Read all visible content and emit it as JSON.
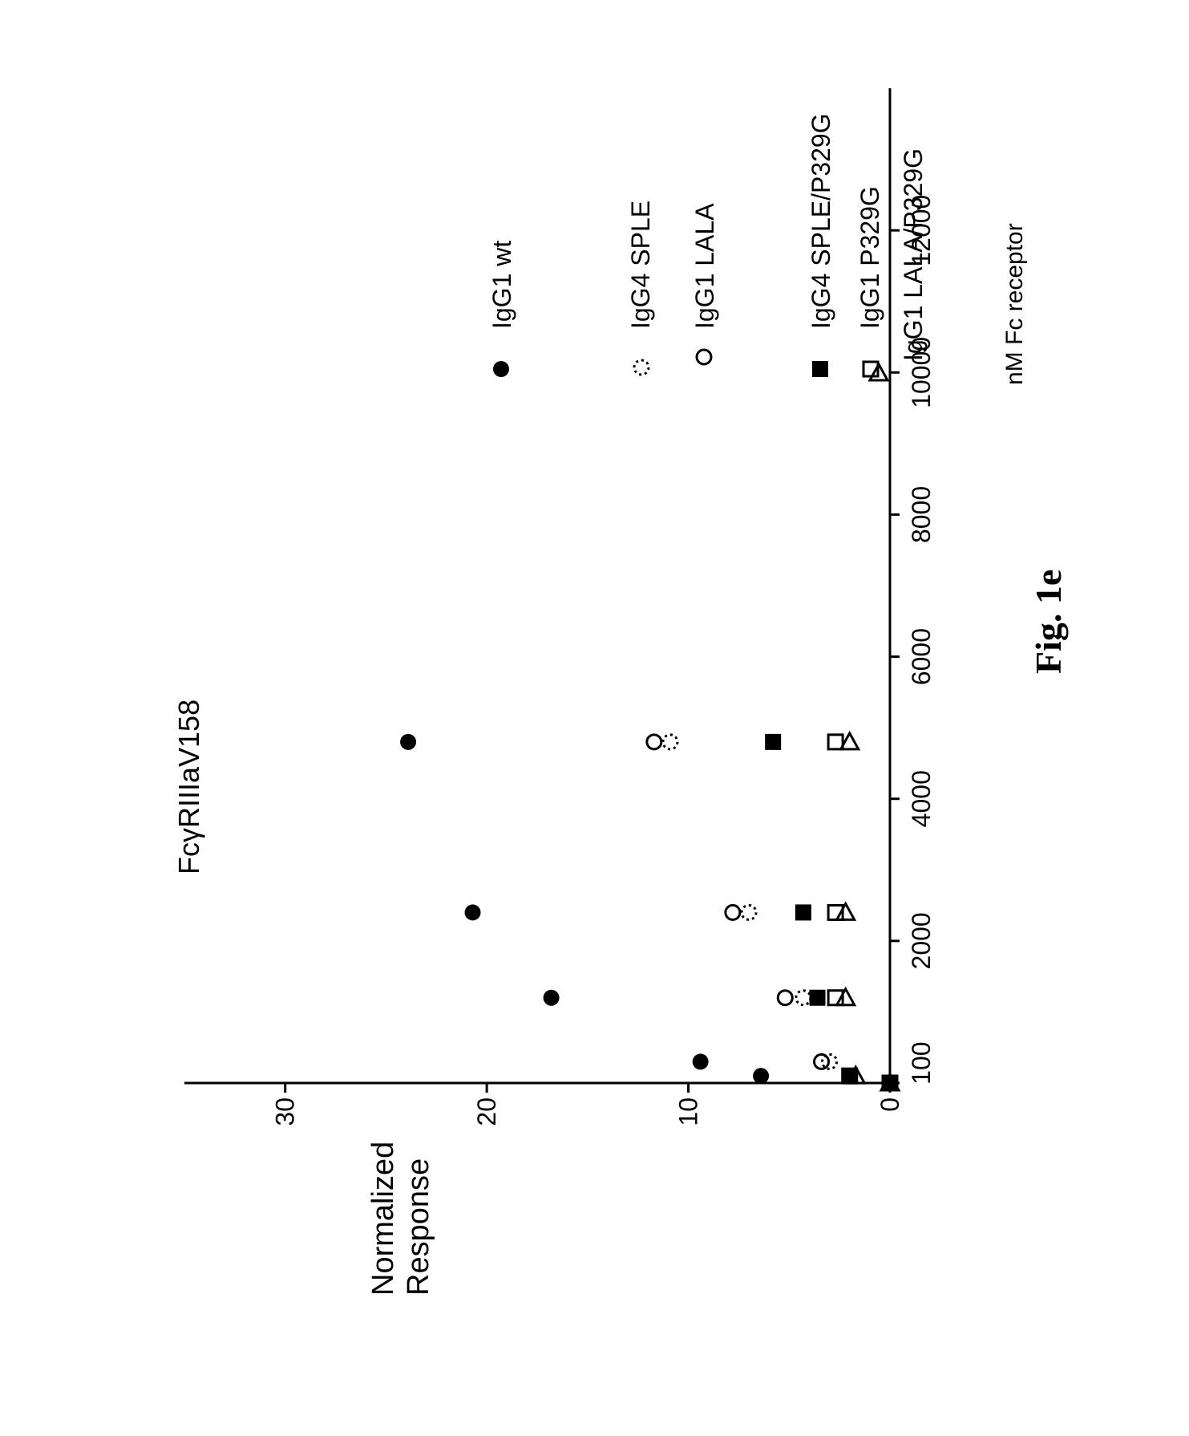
{
  "figure": {
    "caption": "Fig. 1e"
  },
  "chart_data": {
    "type": "scatter",
    "title": "FcγRIIIaV158",
    "xlabel": "nM Fc receptor",
    "ylabel_lines": [
      "Normalized",
      "Response"
    ],
    "xlim": [
      0,
      14000
    ],
    "ylim": [
      0,
      35
    ],
    "x_ticks": [
      {
        "value": 0,
        "label": "0"
      },
      {
        "value": 2000,
        "label": "2000"
      },
      {
        "value": 4000,
        "label": "4000"
      },
      {
        "value": 6000,
        "label": "6000"
      },
      {
        "value": 8000,
        "label": "8000"
      },
      {
        "value": 10000,
        "label": "10000"
      },
      {
        "value": 12000,
        "label": "12000"
      }
    ],
    "extra_x_label": {
      "value": 100,
      "label": "100"
    },
    "y_ticks": [
      {
        "value": 0,
        "label": "0"
      },
      {
        "value": 10,
        "label": "10"
      },
      {
        "value": 20,
        "label": "20"
      },
      {
        "value": 30,
        "label": "30"
      }
    ],
    "grid": false,
    "legend_position": "right",
    "series": [
      {
        "name": "IgG1 wt",
        "marker": "filled-circle",
        "points": [
          [
            0,
            0
          ],
          [
            100,
            6.4
          ],
          [
            300,
            9.4
          ],
          [
            1200,
            16.8
          ],
          [
            2400,
            20.7
          ],
          [
            4800,
            23.9
          ]
        ]
      },
      {
        "name": "IgG4 SPLE",
        "marker": "open-circle-dotted",
        "points": [
          [
            0,
            0
          ],
          [
            300,
            3.0
          ],
          [
            1200,
            4.3
          ],
          [
            2400,
            7.0
          ],
          [
            4800,
            10.9
          ]
        ]
      },
      {
        "name": "IgG1 LALA",
        "marker": "open-circle",
        "points": [
          [
            0,
            0
          ],
          [
            300,
            3.4
          ],
          [
            1200,
            5.2
          ],
          [
            2400,
            7.8
          ],
          [
            4800,
            11.7
          ]
        ]
      },
      {
        "name": "IgG4 SPLE/P329G",
        "marker": "filled-square",
        "points": [
          [
            0,
            0
          ],
          [
            100,
            2.0
          ],
          [
            1200,
            3.6
          ],
          [
            2400,
            4.3
          ],
          [
            4800,
            5.8
          ]
        ]
      },
      {
        "name": "IgG1 P329G",
        "marker": "open-square",
        "points": [
          [
            0,
            0
          ],
          [
            100,
            2.0
          ],
          [
            1200,
            2.7
          ],
          [
            2400,
            2.7
          ],
          [
            4800,
            2.7
          ]
        ]
      },
      {
        "name": "IgG1 LALA/P329G",
        "marker": "open-triangle",
        "points": [
          [
            0,
            0
          ],
          [
            100,
            1.7
          ],
          [
            1200,
            2.2
          ],
          [
            2400,
            2.2
          ],
          [
            4800,
            2.0
          ]
        ]
      }
    ]
  }
}
